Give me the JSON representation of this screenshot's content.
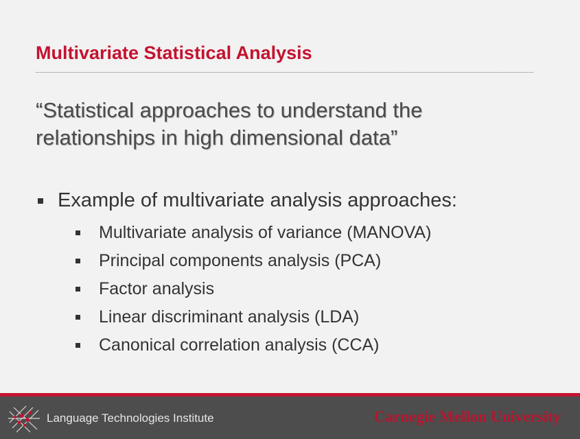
{
  "slide": {
    "title": "Multivariate Statistical Analysis",
    "quote": "“Statistical approaches to understand the relationships in high dimensional data”",
    "bullet_main": "Example of multivariate analysis approaches:",
    "sub_bullets": [
      "Multivariate analysis of variance (MANOVA)",
      "Principal components analysis (PCA)",
      "Factor analysis",
      "Linear discriminant analysis (LDA)",
      "Canonical correlation analysis (CCA)"
    ]
  },
  "footer": {
    "institute": "Language Technologies Institute",
    "university": "Carnegie Mellon University",
    "logo_icon": "lti-network-logo-icon"
  },
  "colors": {
    "accent_red": "#c41230",
    "footer_gray": "#4d4d4d",
    "text": "#333333"
  }
}
